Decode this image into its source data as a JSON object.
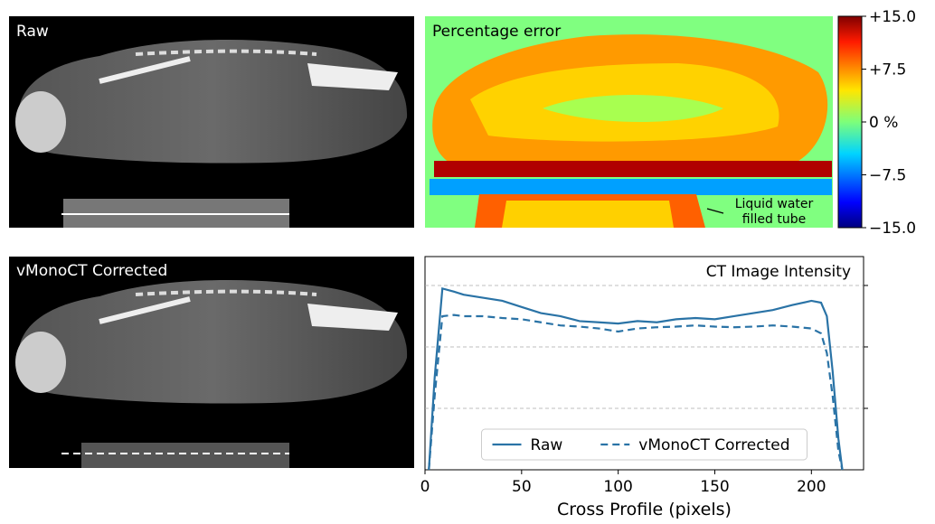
{
  "images": {
    "raw_label": "Raw",
    "corrected_label": "vMonoCT Corrected"
  },
  "chart_data": [
    {
      "type": "heatmap",
      "title": "Percentage error",
      "annotation": [
        "Liquid water",
        "filled tube"
      ],
      "clim": [
        -15,
        15
      ],
      "cticks": [
        {
          "value": 15,
          "label": "+15.0"
        },
        {
          "value": 7.5,
          "label": "+7.5"
        },
        {
          "value": 0,
          "label": "0 %"
        },
        {
          "value": -7.5,
          "label": "−7.5"
        },
        {
          "value": -15,
          "label": "−15.0"
        }
      ]
    },
    {
      "type": "line",
      "title": "CT Image Intensity",
      "xlabel": "Cross Profile (pixels)",
      "x": [
        2,
        5,
        9,
        15,
        20,
        30,
        40,
        50,
        60,
        70,
        80,
        90,
        100,
        110,
        120,
        130,
        140,
        150,
        160,
        170,
        180,
        190,
        200,
        205,
        208,
        211,
        214,
        216
      ],
      "series": [
        {
          "name": "Raw",
          "color": "#2a73a6",
          "dash": false,
          "values": [
            0,
            1.5,
            2.95,
            2.9,
            2.85,
            2.8,
            2.75,
            2.65,
            2.55,
            2.5,
            2.42,
            2.4,
            2.38,
            2.42,
            2.4,
            2.45,
            2.47,
            2.45,
            2.5,
            2.55,
            2.6,
            2.68,
            2.75,
            2.72,
            2.5,
            1.6,
            0.5,
            0
          ]
        },
        {
          "name": "vMonoCT Corrected",
          "color": "#2a73a6",
          "dash": true,
          "values": [
            0,
            1.2,
            2.5,
            2.52,
            2.5,
            2.5,
            2.47,
            2.45,
            2.4,
            2.35,
            2.33,
            2.3,
            2.25,
            2.3,
            2.32,
            2.33,
            2.35,
            2.33,
            2.32,
            2.33,
            2.35,
            2.33,
            2.3,
            2.22,
            1.9,
            1.2,
            0.3,
            0
          ]
        }
      ],
      "xlim": [
        0,
        227
      ],
      "ylim": [
        0,
        3.47
      ],
      "xticks": [
        0,
        50,
        100,
        150,
        200
      ],
      "ygrid": [
        1,
        2,
        3
      ],
      "legend": "lower center"
    }
  ]
}
